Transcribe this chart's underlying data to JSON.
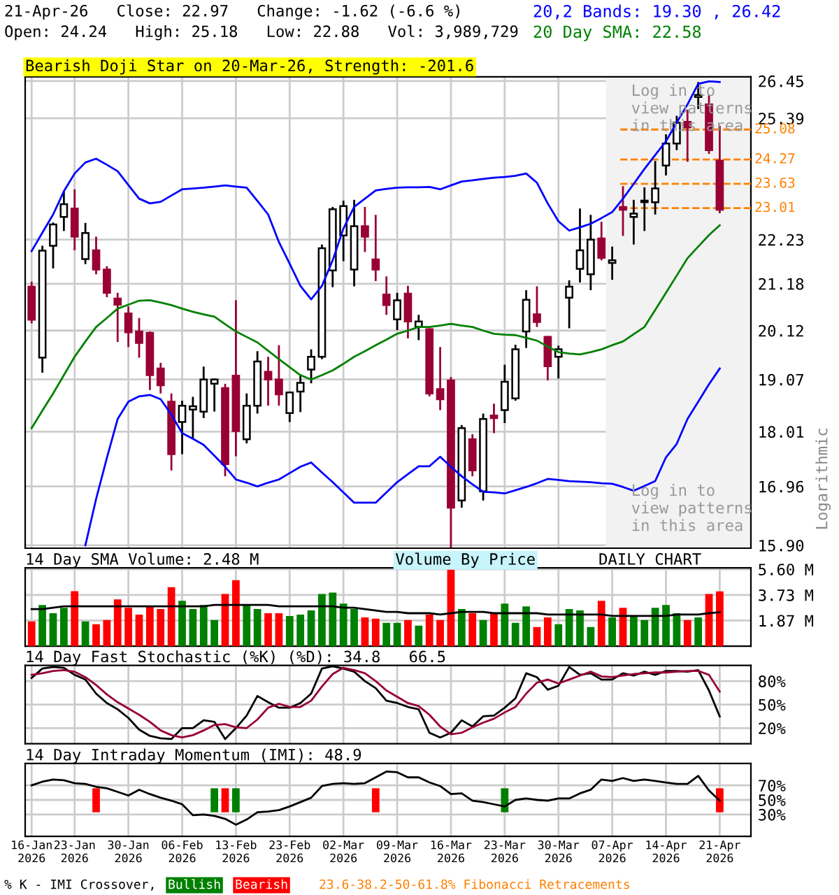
{
  "chart_data": [
    {
      "type": "candlestick",
      "title": "21-Apr-26   Close: 22.97   Change: -1.62 (-6.6 %)",
      "subtitle": "Open: 24.24   High: 25.18   Low: 22.88   Vol: 3,989,729",
      "ylabel": "Logarithmic",
      "annotations": [
        "Bearish Doji Star on 20-Mar-26, Strength: -201.6",
        "Log in to\nview patterns\nin this area",
        "Log in to\nview patterns\nin this area"
      ],
      "log": "y",
      "grid": true,
      "legend": "top right",
      "tick_labels": "y",
      "categories": [
        "16-Jan\n2026",
        null,
        null,
        null,
        "23-Jan\n2026",
        null,
        null,
        null,
        null,
        "30-Jan\n2026",
        null,
        null,
        null,
        null,
        "06-Feb\n2026",
        null,
        null,
        null,
        null,
        "13-Feb\n2026",
        null,
        null,
        null,
        null,
        "23-Feb\n2026",
        null,
        null,
        null,
        null,
        "02-Mar\n2026",
        null,
        null,
        null,
        null,
        "09-Mar\n2026",
        null,
        null,
        null,
        null,
        "16-Mar\n2026",
        null,
        null,
        null,
        null,
        "23-Mar\n2026",
        null,
        null,
        null,
        null,
        "30-Mar\n2026",
        null,
        null,
        null,
        null,
        "07-Apr\n2026",
        null,
        null,
        null,
        null,
        "14-Apr\n2026",
        null,
        null,
        null,
        null,
        "21-Apr\n2026"
      ],
      "ylim": [
        15.85,
        26.57
      ],
      "yticks": [
        {
          "value": 15.9,
          "label": "15.90"
        },
        16.96,
        18.01,
        19.07,
        20.12,
        21.18,
        22.23,
        25.39,
        26.45
      ],
      "ref_lines": [
        {
          "axis": "y",
          "value": 25.08,
          "label": "25.08",
          "color": "#ff8000",
          "line_style": "dashed"
        },
        {
          "axis": "y",
          "value": 24.27,
          "label": "24.27",
          "color": "#ff8000",
          "line_style": "dashed"
        },
        {
          "axis": "y",
          "value": 23.63,
          "label": "23.63",
          "color": "#ff8000",
          "line_style": "dashed"
        },
        {
          "axis": "y",
          "value": 23.01,
          "label": "23.01",
          "color": "#ff8000",
          "line_style": "dashed"
        }
      ],
      "bands": [
        {
          "axis": "x",
          "from": "07-Apr\n2026",
          "to": "21-Apr\n2026",
          "color": "#f2f2f2"
        }
      ],
      "ohlc": [
        [
          21.11,
          21.23,
          20.28,
          20.36
        ],
        [
          19.53,
          22.08,
          19.21,
          21.96
        ],
        [
          22.08,
          22.65,
          21.54,
          22.6
        ],
        [
          22.79,
          23.43,
          22.44,
          23.11
        ],
        [
          23.0,
          23.49,
          21.97,
          22.3
        ],
        [
          21.76,
          22.64,
          21.64,
          22.39
        ],
        [
          21.97,
          22.3,
          21.4,
          21.51
        ],
        [
          21.51,
          21.59,
          20.87,
          20.97
        ],
        [
          20.84,
          20.97,
          19.87,
          20.7
        ],
        [
          20.5,
          20.66,
          19.76,
          20.08
        ],
        [
          20.1,
          20.4,
          19.53,
          19.85
        ],
        [
          20.07,
          20.1,
          18.85,
          19.16
        ],
        [
          19.3,
          19.42,
          18.78,
          18.95
        ],
        [
          18.61,
          18.78,
          17.26,
          17.57
        ],
        [
          18.2,
          18.63,
          17.57,
          18.53
        ],
        [
          18.45,
          18.71,
          17.86,
          18.52
        ],
        [
          18.41,
          19.34,
          18.28,
          19.07
        ],
        [
          18.98,
          19.09,
          18.41,
          19.07
        ],
        [
          18.89,
          18.98,
          17.15,
          17.38
        ],
        [
          19.15,
          20.8,
          17.53,
          18.02
        ],
        [
          17.86,
          18.78,
          17.78,
          18.53
        ],
        [
          18.53,
          19.67,
          18.37,
          19.45
        ],
        [
          19.23,
          19.55,
          18.53,
          19.07
        ],
        [
          19.07,
          19.8,
          18.53,
          18.76
        ],
        [
          18.38,
          18.82,
          18.2,
          18.8
        ],
        [
          18.82,
          19.18,
          18.4,
          19.0
        ],
        [
          19.28,
          19.71,
          18.99,
          19.55
        ],
        [
          19.55,
          22.11,
          19.5,
          22.02
        ],
        [
          21.49,
          23.04,
          21.1,
          22.98
        ],
        [
          22.33,
          23.2,
          21.71,
          23.06
        ],
        [
          21.51,
          23.22,
          21.12,
          22.56
        ],
        [
          22.56,
          23.04,
          21.93,
          22.3
        ],
        [
          21.75,
          22.84,
          21.24,
          21.51
        ],
        [
          20.93,
          21.35,
          20.47,
          20.69
        ],
        [
          20.37,
          20.97,
          20.13,
          20.8
        ],
        [
          20.95,
          21.13,
          19.95,
          20.32
        ],
        [
          20.2,
          20.47,
          19.91,
          20.32
        ],
        [
          20.15,
          20.17,
          18.72,
          18.78
        ],
        [
          18.87,
          19.76,
          18.44,
          18.66
        ],
        [
          19.05,
          19.12,
          15.86,
          16.57
        ],
        [
          16.7,
          18.14,
          16.57,
          18.08
        ],
        [
          17.86,
          17.96,
          17.15,
          17.26
        ],
        [
          16.87,
          18.37,
          16.7,
          18.26
        ],
        [
          18.33,
          18.57,
          17.98,
          18.28
        ],
        [
          18.44,
          19.38,
          18.18,
          19.02
        ],
        [
          18.68,
          19.81,
          18.63,
          19.71
        ],
        [
          20.1,
          21.03,
          19.74,
          20.81
        ],
        [
          20.48,
          21.12,
          20.2,
          20.31
        ],
        [
          19.98,
          20.0,
          19.05,
          19.35
        ],
        [
          19.55,
          19.79,
          19.09,
          19.71
        ],
        [
          20.86,
          21.26,
          20.17,
          21.11
        ],
        [
          21.53,
          23.0,
          21.21,
          21.97
        ],
        [
          21.4,
          22.84,
          21.03,
          22.23
        ],
        [
          22.26,
          22.67,
          21.73,
          21.79
        ],
        [
          21.67,
          22.06,
          21.27,
          21.73
        ],
        [
          23.04,
          23.57,
          22.32,
          22.97
        ],
        [
          22.79,
          23.22,
          22.11,
          22.87
        ],
        [
          23.16,
          23.54,
          22.44,
          23.2
        ],
        [
          23.16,
          24.23,
          22.85,
          23.51
        ],
        [
          24.11,
          24.95,
          23.85,
          24.7
        ],
        [
          24.7,
          25.46,
          24.52,
          25.27
        ],
        [
          25.29,
          25.63,
          24.21,
          25.14
        ],
        [
          25.99,
          26.42,
          25.65,
          26.05
        ],
        [
          25.78,
          26.04,
          24.42,
          24.52
        ],
        [
          24.24,
          25.18,
          22.88,
          22.97
        ]
      ],
      "colors": [
        "#990033",
        "#ffffff",
        "#ffffff",
        "#ffffff",
        "#990033",
        "#ffffff",
        "#990033",
        "#990033",
        "#990033",
        "#990033",
        "#990033",
        "#990033",
        "#990033",
        "#990033",
        "#ffffff",
        "#ffffff",
        "#ffffff",
        "#ffffff",
        "#990033",
        "#990033",
        "#ffffff",
        "#ffffff",
        "#990033",
        "#990033",
        "#ffffff",
        "#ffffff",
        "#ffffff",
        "#ffffff",
        "#ffffff",
        "#ffffff",
        "#ffffff",
        "#990033",
        "#990033",
        "#990033",
        "#ffffff",
        "#990033",
        "#ffffff",
        "#990033",
        "#990033",
        "#990033",
        "#ffffff",
        "#990033",
        "#ffffff",
        "#990033",
        "#ffffff",
        "#ffffff",
        "#ffffff",
        "#990033",
        "#990033",
        "#ffffff",
        "#ffffff",
        "#ffffff",
        "#ffffff",
        "#990033",
        "#ffffff",
        "#990033",
        "#ffffff",
        "#ffffff",
        "#ffffff",
        "#ffffff",
        "#ffffff",
        "#990033",
        "#ffffff",
        "#990033",
        "#990033"
      ],
      "series": [
        {
          "type": "line",
          "name": "20,2 Bands: 19.30 , 26.42",
          "color": "#0000ff",
          "values": [
            21.95,
            22.4,
            22.85,
            23.44,
            23.9,
            24.19,
            24.29,
            24.13,
            23.96,
            23.6,
            23.25,
            23.13,
            23.17,
            23.33,
            23.49,
            23.51,
            23.53,
            23.56,
            23.59,
            23.56,
            23.53,
            23.19,
            22.85,
            22.17,
            21.65,
            21.13,
            20.82,
            21.13,
            21.73,
            22.5,
            23.04,
            23.25,
            23.46,
            23.5,
            23.53,
            23.54,
            23.54,
            23.55,
            23.49,
            23.59,
            23.69,
            23.72,
            23.76,
            23.79,
            23.81,
            23.84,
            23.9,
            23.66,
            23.13,
            22.68,
            22.45,
            22.53,
            22.62,
            22.76,
            22.91,
            23.25,
            23.63,
            24.02,
            24.39,
            24.76,
            25.27,
            25.78,
            26.37,
            26.44,
            26.42
          ]
        },
        {
          "type": "line",
          "name": "20 Day SMA: 22.58",
          "color": "#008000",
          "values": [
            18.08,
            18.43,
            18.78,
            19.16,
            19.55,
            19.88,
            20.2,
            20.4,
            20.61,
            20.7,
            20.79,
            20.8,
            20.75,
            20.69,
            20.61,
            20.54,
            20.48,
            20.43,
            20.26,
            20.1,
            19.98,
            19.86,
            19.68,
            19.5,
            19.33,
            19.16,
            19.07,
            19.16,
            19.26,
            19.4,
            19.55,
            19.67,
            19.8,
            19.92,
            20.05,
            20.12,
            20.2,
            20.2,
            20.23,
            20.27,
            20.23,
            20.2,
            20.12,
            20.05,
            20.03,
            20.02,
            19.96,
            19.9,
            19.77,
            19.65,
            19.62,
            19.6,
            19.65,
            19.71,
            19.8,
            19.88,
            20.04,
            20.2,
            20.58,
            20.97,
            21.37,
            21.78,
            22.06,
            22.34,
            22.58
          ]
        },
        {
          "type": "line",
          "color": "#0000ff",
          "values": [
            null,
            null,
            null,
            null,
            null,
            15.9,
            16.73,
            17.5,
            18.26,
            18.61,
            18.72,
            18.75,
            18.66,
            18.35,
            17.98,
            17.87,
            17.75,
            17.54,
            17.33,
            17.09,
            17.03,
            16.96,
            17.03,
            17.09,
            17.21,
            17.33,
            17.41,
            17.22,
            17.04,
            16.85,
            16.66,
            16.66,
            16.66,
            16.85,
            17.04,
            17.19,
            17.34,
            17.34,
            17.52,
            17.33,
            17.15,
            17.0,
            16.86,
            16.85,
            16.83,
            16.89,
            16.95,
            17.02,
            17.1,
            17.08,
            17.06,
            17.05,
            17.04,
            17.02,
            17.01,
            16.95,
            16.88,
            16.97,
            17.06,
            17.51,
            17.77,
            18.26,
            18.61,
            18.97,
            19.3
          ]
        }
      ]
    },
    {
      "type": "bar",
      "title": "14 Day SMA Volume: 2.48 M",
      "annotations": [
        "Volume By Price",
        "DAILY CHART"
      ],
      "grid": true,
      "tick_labels": "y",
      "categories": [
        "16-Jan\n2026",
        null,
        null,
        null,
        "23-Jan\n2026",
        null,
        null,
        null,
        null,
        "30-Jan\n2026",
        null,
        null,
        null,
        null,
        "06-Feb\n2026",
        null,
        null,
        null,
        null,
        "13-Feb\n2026",
        null,
        null,
        null,
        null,
        "23-Feb\n2026",
        null,
        null,
        null,
        null,
        "02-Mar\n2026",
        null,
        null,
        null,
        null,
        "09-Mar\n2026",
        null,
        null,
        null,
        null,
        "16-Mar\n2026",
        null,
        null,
        null,
        null,
        "23-Mar\n2026",
        null,
        null,
        null,
        null,
        "30-Mar\n2026",
        null,
        null,
        null,
        null,
        "07-Apr\n2026",
        null,
        null,
        null,
        null,
        "14-Apr\n2026",
        null,
        null,
        null,
        null,
        "21-Apr\n2026"
      ],
      "ylim": [
        0,
        5.7
      ],
      "yticks": [
        {
          "value": 1.87,
          "label": "1.87 M"
        },
        {
          "value": 3.73,
          "label": "3.73 M"
        },
        {
          "value": 5.6,
          "label": "5.60 M"
        }
      ],
      "values": [
        1.8,
        3.0,
        2.4,
        2.8,
        4.0,
        1.8,
        1.6,
        1.9,
        3.4,
        2.8,
        2.3,
        2.9,
        2.7,
        4.3,
        3.3,
        2.7,
        3.0,
        1.9,
        3.8,
        4.8,
        3.0,
        2.7,
        2.4,
        2.4,
        2.2,
        2.3,
        2.6,
        3.8,
        3.9,
        3.1,
        2.7,
        2.1,
        2.0,
        1.7,
        1.7,
        1.9,
        1.5,
        2.3,
        1.9,
        5.7,
        2.7,
        2.4,
        1.9,
        2.4,
        3.1,
        1.7,
        2.9,
        1.4,
        2.1,
        1.6,
        2.7,
        2.6,
        1.4,
        3.3,
        2.1,
        2.8,
        2.2,
        1.9,
        2.8,
        3.0,
        2.4,
        1.9,
        2.1,
        3.8,
        3.99
      ],
      "colors": [
        "#ff0000",
        "#008000",
        "#008000",
        "#008000",
        "#ff0000",
        "#008000",
        "#ff0000",
        "#ff0000",
        "#ff0000",
        "#ff0000",
        "#ff0000",
        "#ff0000",
        "#ff0000",
        "#ff0000",
        "#008000",
        "#008000",
        "#008000",
        "#008000",
        "#ff0000",
        "#ff0000",
        "#008000",
        "#008000",
        "#ff0000",
        "#ff0000",
        "#008000",
        "#008000",
        "#008000",
        "#008000",
        "#008000",
        "#008000",
        "#008000",
        "#ff0000",
        "#ff0000",
        "#008000",
        "#008000",
        "#ff0000",
        "#008000",
        "#ff0000",
        "#ff0000",
        "#ff0000",
        "#008000",
        "#ff0000",
        "#008000",
        "#ff0000",
        "#008000",
        "#008000",
        "#008000",
        "#ff0000",
        "#ff0000",
        "#008000",
        "#008000",
        "#008000",
        "#008000",
        "#ff0000",
        "#008000",
        "#ff0000",
        "#008000",
        "#008000",
        "#008000",
        "#008000",
        "#008000",
        "#ff0000",
        "#008000",
        "#ff0000",
        "#ff0000"
      ],
      "series": [
        {
          "type": "line",
          "color": "#000000",
          "values": [
            2.7,
            2.7,
            2.8,
            2.9,
            2.9,
            2.9,
            2.9,
            2.9,
            2.9,
            2.9,
            2.9,
            2.9,
            2.9,
            2.9,
            2.9,
            2.9,
            2.9,
            3.0,
            3.0,
            3.0,
            3.0,
            3.0,
            3.0,
            2.9,
            2.9,
            2.9,
            2.9,
            2.9,
            2.9,
            2.8,
            2.8,
            2.7,
            2.6,
            2.5,
            2.5,
            2.4,
            2.4,
            2.4,
            2.3,
            2.4,
            2.5,
            2.5,
            2.5,
            2.4,
            2.4,
            2.4,
            2.4,
            2.4,
            2.3,
            2.3,
            2.3,
            2.3,
            2.3,
            2.3,
            2.2,
            2.2,
            2.2,
            2.2,
            2.2,
            2.2,
            2.3,
            2.3,
            2.3,
            2.4,
            2.48
          ]
        }
      ]
    },
    {
      "type": "line",
      "title": "14 Day Fast Stochastic (%K) (%D): 34.8   66.5",
      "grid": true,
      "tick_labels": "y",
      "categories": [
        "16-Jan\n2026",
        null,
        null,
        null,
        "23-Jan\n2026",
        null,
        null,
        null,
        null,
        "30-Jan\n2026",
        null,
        null,
        null,
        null,
        "06-Feb\n2026",
        null,
        null,
        null,
        null,
        "13-Feb\n2026",
        null,
        null,
        null,
        null,
        "23-Feb\n2026",
        null,
        null,
        null,
        null,
        "02-Mar\n2026",
        null,
        null,
        null,
        null,
        "09-Mar\n2026",
        null,
        null,
        null,
        null,
        "16-Mar\n2026",
        null,
        null,
        null,
        null,
        "23-Mar\n2026",
        null,
        null,
        null,
        null,
        "30-Mar\n2026",
        null,
        null,
        null,
        null,
        "07-Apr\n2026",
        null,
        null,
        null,
        null,
        "14-Apr\n2026",
        null,
        null,
        null,
        null,
        "21-Apr\n2026"
      ],
      "ylim": [
        0,
        100
      ],
      "yticks": [
        {
          "value": 20,
          "label": "20%"
        },
        {
          "value": 50,
          "label": "50%"
        },
        {
          "value": 80,
          "label": "80%"
        }
      ],
      "series": [
        {
          "color": "#000000",
          "values": [
            84,
            96,
            98,
            97,
            88,
            82,
            64,
            52,
            44,
            33,
            18,
            10,
            7,
            6,
            20,
            20,
            30,
            28,
            6,
            20,
            36,
            61,
            53,
            46,
            46,
            52,
            64,
            96,
            99,
            96,
            92,
            80,
            71,
            55,
            52,
            47,
            44,
            14,
            8,
            14,
            30,
            22,
            35,
            36,
            46,
            58,
            90,
            85,
            69,
            74,
            98,
            88,
            90,
            82,
            82,
            90,
            87,
            92,
            88,
            93,
            93,
            92,
            94,
            68,
            34.8
          ]
        },
        {
          "color": "#990033",
          "values": [
            88,
            90,
            93,
            94,
            92,
            85,
            75,
            63,
            53,
            45,
            37,
            28,
            17,
            11,
            8,
            11,
            17,
            24,
            25,
            21,
            20,
            31,
            46,
            51,
            47,
            47,
            55,
            73,
            89,
            97,
            94,
            90,
            80,
            68,
            60,
            52,
            48,
            37,
            22,
            12,
            14,
            21,
            27,
            32,
            40,
            47,
            64,
            78,
            82,
            77,
            82,
            87,
            92,
            86,
            85,
            87,
            89,
            90,
            91,
            91,
            92,
            93,
            93,
            88,
            66.5
          ]
        }
      ]
    },
    {
      "type": "line",
      "title": "14 Day Intraday Momentum (IMI): 48.9",
      "annotations": [
        "% K - IMI Crossover,",
        "23.6-38.2-50-61.8% Fibonacci Retracements"
      ],
      "grid": true,
      "legend": "bottom",
      "categories": [
        "16-Jan\n2026",
        null,
        null,
        null,
        "23-Jan\n2026",
        null,
        null,
        null,
        null,
        "30-Jan\n2026",
        null,
        null,
        null,
        null,
        "06-Feb\n2026",
        null,
        null,
        null,
        null,
        "13-Feb\n2026",
        null,
        null,
        null,
        null,
        "23-Feb\n2026",
        null,
        null,
        null,
        null,
        "02-Mar\n2026",
        null,
        null,
        null,
        null,
        "09-Mar\n2026",
        null,
        null,
        null,
        null,
        "16-Mar\n2026",
        null,
        null,
        null,
        null,
        "23-Mar\n2026",
        null,
        null,
        null,
        null,
        "30-Mar\n2026",
        null,
        null,
        null,
        null,
        "07-Apr\n2026",
        null,
        null,
        null,
        null,
        "14-Apr\n2026",
        null,
        null,
        null,
        null,
        "21-Apr\n2026"
      ],
      "ylim": [
        0,
        100
      ],
      "yticks": [
        {
          "value": 30,
          "label": "30%"
        },
        {
          "value": 50,
          "label": "50%"
        },
        {
          "value": 70,
          "label": "70%"
        }
      ],
      "series": [
        {
          "color": "#000000",
          "values": [
            70,
            75,
            78,
            77,
            73,
            72,
            68,
            66,
            61,
            56,
            64,
            58,
            53,
            49,
            44,
            29,
            30,
            28,
            24,
            16,
            23,
            33,
            34,
            36,
            41,
            47,
            53,
            69,
            72,
            73,
            72,
            73,
            81,
            89,
            88,
            81,
            81,
            74,
            69,
            58,
            59,
            49,
            47,
            44,
            41,
            50,
            52,
            50,
            49,
            52,
            52,
            59,
            64,
            78,
            76,
            80,
            76,
            78,
            76,
            74,
            72,
            72,
            83,
            63,
            48.9
          ]
        },
        {
          "type": "bar",
          "name": "Bullish",
          "color": "#008000",
          "base": [
            null,
            null,
            null,
            null,
            null,
            null,
            null,
            null,
            null,
            null,
            null,
            null,
            null,
            null,
            null,
            null,
            null,
            33,
            null,
            33,
            null,
            null,
            null,
            null,
            null,
            null,
            null,
            null,
            null,
            null,
            null,
            null,
            null,
            null,
            null,
            null,
            null,
            null,
            null,
            null,
            null,
            null,
            null,
            null,
            33,
            null,
            null,
            null,
            null,
            null,
            null,
            null,
            null,
            null,
            null,
            null,
            null,
            null,
            null,
            null,
            null,
            null,
            null,
            null,
            null
          ],
          "values": [
            null,
            null,
            null,
            null,
            null,
            null,
            null,
            null,
            null,
            null,
            null,
            null,
            null,
            null,
            null,
            null,
            null,
            33,
            null,
            33,
            null,
            null,
            null,
            null,
            null,
            null,
            null,
            null,
            null,
            null,
            null,
            null,
            null,
            null,
            null,
            null,
            null,
            null,
            null,
            null,
            null,
            null,
            null,
            null,
            33,
            null,
            null,
            null,
            null,
            null,
            null,
            null,
            null,
            null,
            null,
            null,
            null,
            null,
            null,
            null,
            null,
            null,
            null,
            null,
            null
          ]
        },
        {
          "type": "bar",
          "name": "Bearish",
          "color": "#ff0000",
          "base": [
            null,
            null,
            null,
            null,
            null,
            null,
            33,
            null,
            null,
            null,
            null,
            null,
            null,
            null,
            null,
            null,
            null,
            null,
            33,
            null,
            null,
            null,
            null,
            null,
            null,
            null,
            null,
            null,
            null,
            null,
            null,
            null,
            33,
            null,
            null,
            null,
            null,
            null,
            null,
            null,
            null,
            null,
            null,
            null,
            null,
            null,
            null,
            null,
            null,
            null,
            null,
            null,
            null,
            null,
            null,
            null,
            null,
            null,
            null,
            null,
            null,
            null,
            null,
            null,
            33
          ],
          "values": [
            null,
            null,
            null,
            null,
            null,
            null,
            33,
            null,
            null,
            null,
            null,
            null,
            null,
            null,
            null,
            null,
            null,
            null,
            33,
            null,
            null,
            null,
            null,
            null,
            null,
            null,
            null,
            null,
            null,
            null,
            null,
            null,
            33,
            null,
            null,
            null,
            null,
            null,
            null,
            null,
            null,
            null,
            null,
            null,
            null,
            null,
            null,
            null,
            null,
            null,
            null,
            null,
            null,
            null,
            null,
            null,
            null,
            null,
            null,
            null,
            null,
            null,
            null,
            null,
            33
          ]
        }
      ]
    }
  ]
}
